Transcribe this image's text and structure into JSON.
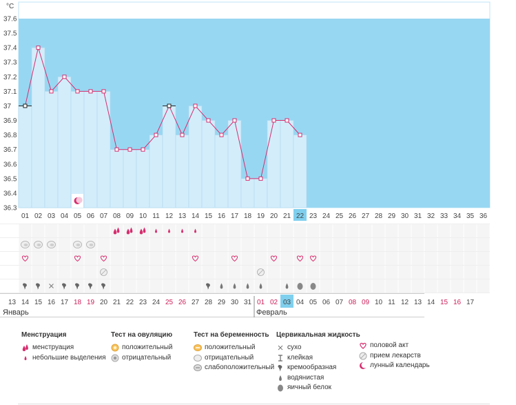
{
  "chart_data": {
    "type": "line",
    "y_unit": "°C",
    "y_ticks": [
      "37.6",
      "37.5",
      "37.4",
      "37.3",
      "37.2",
      "37.1",
      "37",
      "36.9",
      "36.8",
      "36.7",
      "36.6",
      "36.5",
      "36.4",
      "36.3"
    ],
    "ylim": [
      36.3,
      37.6
    ],
    "cycle_days": [
      "01",
      "02",
      "03",
      "04",
      "05",
      "06",
      "07",
      "08",
      "09",
      "10",
      "11",
      "12",
      "13",
      "14",
      "15",
      "16",
      "17",
      "18",
      "19",
      "20",
      "21",
      "22",
      "23",
      "24",
      "25",
      "26",
      "27",
      "28",
      "29",
      "30",
      "31",
      "32",
      "33",
      "34",
      "35",
      "36"
    ],
    "highlighted_cycle_day": "22",
    "temperatures": [
      37.0,
      37.4,
      37.1,
      37.2,
      37.1,
      37.1,
      37.1,
      36.7,
      36.7,
      36.7,
      36.8,
      37.0,
      36.8,
      37.0,
      36.9,
      36.8,
      36.9,
      36.5,
      36.5,
      36.9,
      36.9,
      36.8
    ],
    "marker_style": [
      "black",
      "pink",
      "pink",
      "pink",
      "pink",
      "pink",
      "pink",
      "pink",
      "pink",
      "pink",
      "pink",
      "black",
      "pink",
      "pink",
      "pink",
      "pink",
      "pink",
      "pink",
      "pink",
      "pink",
      "pink",
      "pink"
    ],
    "moon_day_index": 4,
    "calendar_dates": [
      "13",
      "14",
      "15",
      "16",
      "17",
      "18",
      "19",
      "20",
      "21",
      "22",
      "23",
      "24",
      "25",
      "26",
      "27",
      "28",
      "29",
      "30",
      "31",
      "01",
      "02",
      "03",
      "04",
      "05",
      "06",
      "07",
      "08",
      "09",
      "10",
      "11",
      "12",
      "13",
      "14",
      "15",
      "16",
      "17"
    ],
    "weekend_dates_index": [
      5,
      6,
      12,
      13,
      19,
      20,
      26,
      27,
      33,
      34
    ],
    "highlighted_date_index": 21,
    "month_labels": [
      {
        "label": "Январь",
        "start_index": 0
      },
      {
        "label": "Февраль",
        "start_index": 19
      }
    ],
    "rows": {
      "menstruation": [
        "",
        "",
        "",
        "",
        "",
        "",
        "",
        "big",
        "big",
        "big",
        "small",
        "small",
        "small",
        "small",
        "",
        "",
        "",
        "",
        "",
        "",
        "",
        "",
        "",
        "",
        "",
        "",
        "",
        "",
        "",
        "",
        "",
        "",
        "",
        "",
        "",
        ""
      ],
      "ovulation_test": [
        "neg",
        "neg",
        "neg",
        "",
        "neg",
        "neg",
        "",
        "",
        "",
        "",
        "",
        "",
        "",
        "",
        "",
        "",
        "",
        "",
        "",
        "",
        "",
        "",
        "",
        "",
        "",
        "",
        "",
        "",
        "",
        "",
        "",
        "",
        "",
        "",
        "",
        ""
      ],
      "intercourse": [
        "heart",
        "",
        "",
        "",
        "heart",
        "",
        "heart",
        "",
        "",
        "",
        "",
        "",
        "",
        "heart",
        "",
        "",
        "heart",
        "",
        "",
        "heart",
        "",
        "heart",
        "heart",
        "",
        "",
        "",
        "",
        "",
        "",
        "",
        "",
        "",
        "",
        "",
        "",
        ""
      ],
      "medication": [
        "",
        "",
        "",
        "",
        "",
        "",
        "pill",
        "",
        "",
        "",
        "",
        "",
        "",
        "",
        "",
        "",
        "",
        "",
        "pill",
        "",
        "",
        "",
        "",
        "",
        "",
        "",
        "",
        "",
        "",
        "",
        "",
        "",
        "",
        "",
        "",
        ""
      ],
      "cervical": [
        "creamy",
        "creamy",
        "dry",
        "creamy",
        "creamy",
        "creamy",
        "creamy",
        "",
        "",
        "",
        "",
        "",
        "",
        "",
        "creamy",
        "watery",
        "watery",
        "watery",
        "watery",
        "",
        "watery",
        "eggwhite",
        "eggwhite",
        "",
        "",
        "",
        "",
        "",
        "",
        "",
        "",
        "",
        "",
        "",
        "",
        ""
      ]
    }
  },
  "legend": {
    "menstruation": {
      "title": "Менструация",
      "items": [
        {
          "icon": "menstruation-icon",
          "label": "менструация"
        },
        {
          "icon": "spotting-icon",
          "label": "небольшие выделения"
        }
      ]
    },
    "ovulation": {
      "title": "Тест на овуляцию",
      "items": [
        {
          "icon": "ovulation-positive-icon",
          "label": "положительный"
        },
        {
          "icon": "ovulation-negative-icon",
          "label": "отрицательный"
        }
      ]
    },
    "pregnancy": {
      "title": "Тест на беременность",
      "items": [
        {
          "icon": "pregnancy-positive-icon",
          "label": "положительный"
        },
        {
          "icon": "pregnancy-negative-icon",
          "label": "отрицательный"
        },
        {
          "icon": "pregnancy-weak-icon",
          "label": "слабоположительный"
        }
      ]
    },
    "cervical": {
      "title": "Цервикальная жидкость",
      "items": [
        {
          "icon": "dry-icon",
          "label": "сухо"
        },
        {
          "icon": "sticky-icon",
          "label": "клейкая"
        },
        {
          "icon": "creamy-icon",
          "label": "кремообразная"
        },
        {
          "icon": "watery-icon",
          "label": "водянистая"
        },
        {
          "icon": "eggwhite-icon",
          "label": "яичный белок"
        }
      ]
    },
    "other": {
      "items": [
        {
          "icon": "heart-icon",
          "label": "половой акт"
        },
        {
          "icon": "pill-icon",
          "label": "прием лекарств"
        },
        {
          "icon": "moon-icon",
          "label": "лунный календарь"
        }
      ]
    }
  },
  "colors": {
    "sky": "#98d7f2",
    "bar": "#d3edfb",
    "bar_edge": "#aed8ef",
    "line": "#d62d6e",
    "marker_fill": "#ffffff",
    "highlight": "#7fcfee",
    "weekend": "#cc1f5a",
    "grid": "#eeeeee",
    "row_fill": "#f5f5f5"
  }
}
